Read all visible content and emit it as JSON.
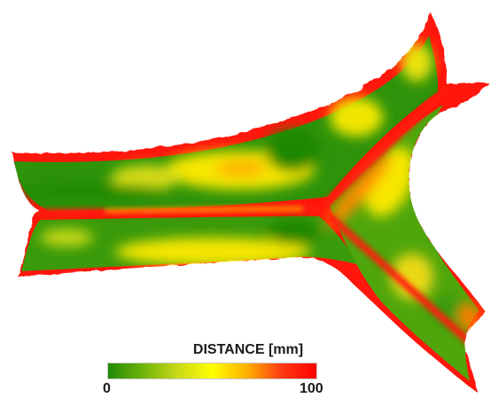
{
  "legend": {
    "title": "DISTANCE [mm]",
    "min_label": "0",
    "max_label": "100",
    "colors": [
      "#1f8a06",
      "#6fb40a",
      "#c9d817",
      "#ffff00",
      "#ffb000",
      "#ff3a12",
      "#ff0000"
    ]
  },
  "palette": {
    "dark_green": "#1b8705",
    "green": "#63ad07",
    "yellow_green": "#c7d915",
    "yellow": "#fff200",
    "orange": "#ff9b0a",
    "red": "#ff1a0a"
  }
}
